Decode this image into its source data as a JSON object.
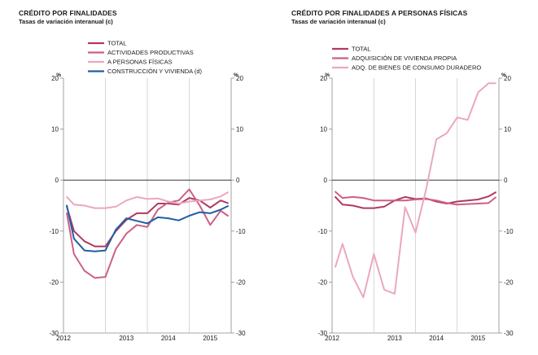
{
  "chart_data": [
    {
      "type": "line",
      "title": "CRÉDITO POR FINALIDADES",
      "subtitle": "Tasas de variación interanual (c)",
      "unit_left": "%",
      "unit_right": "%",
      "ylim": [
        -30,
        20
      ],
      "yticks": [
        20,
        10,
        0,
        -10,
        -20,
        -30
      ],
      "x_start": 2012.0,
      "x_end": 2016.0,
      "year_labels": [
        "2012",
        "2013",
        "2014",
        "2015"
      ],
      "series": [
        {
          "name": "TOTAL",
          "color": "#b03a62",
          "x": [
            2012.08,
            2012.25,
            2012.5,
            2012.75,
            2013.0,
            2013.25,
            2013.5,
            2013.75,
            2014.0,
            2014.25,
            2014.5,
            2014.75,
            2015.0,
            2015.25,
            2015.5,
            2015.75,
            2015.92
          ],
          "values": [
            -5.2,
            -10.0,
            -12.0,
            -13.0,
            -13.0,
            -10.0,
            -7.8,
            -6.5,
            -6.5,
            -4.6,
            -4.6,
            -4.8,
            -3.5,
            -4.0,
            -5.4,
            -4.0,
            -4.5
          ]
        },
        {
          "name": "ACTIVIDADES PRODUCTIVAS",
          "color": "#cc5f86",
          "x": [
            2012.08,
            2012.25,
            2012.5,
            2012.75,
            2013.0,
            2013.25,
            2013.5,
            2013.75,
            2014.0,
            2014.25,
            2014.5,
            2014.75,
            2015.0,
            2015.25,
            2015.5,
            2015.75,
            2015.92
          ],
          "values": [
            -6.5,
            -14.5,
            -17.8,
            -19.2,
            -19.0,
            -13.5,
            -10.5,
            -8.8,
            -9.2,
            -5.8,
            -4.4,
            -4.0,
            -1.8,
            -5.0,
            -8.8,
            -6.0,
            -7.0
          ]
        },
        {
          "name": "A PERSONAS FÍSICAS",
          "color": "#eba7bf",
          "x": [
            2012.08,
            2012.25,
            2012.5,
            2012.75,
            2013.0,
            2013.25,
            2013.5,
            2013.75,
            2014.0,
            2014.25,
            2014.5,
            2014.75,
            2015.0,
            2015.25,
            2015.5,
            2015.75,
            2015.92
          ],
          "values": [
            -3.3,
            -4.8,
            -5.0,
            -5.5,
            -5.5,
            -5.2,
            -4.0,
            -3.3,
            -3.7,
            -3.6,
            -4.2,
            -4.6,
            -4.2,
            -4.0,
            -3.8,
            -3.2,
            -2.4
          ]
        },
        {
          "name": "CONSTRUCCIÓN Y VIVIENDA (d)",
          "color": "#1f5fa3",
          "x": [
            2012.08,
            2012.25,
            2012.5,
            2012.75,
            2013.0,
            2013.25,
            2013.5,
            2013.75,
            2014.0,
            2014.25,
            2014.5,
            2014.75,
            2015.0,
            2015.25,
            2015.5,
            2015.75,
            2015.92
          ],
          "values": [
            -5.0,
            -11.5,
            -13.8,
            -14.0,
            -13.8,
            -9.7,
            -7.5,
            -8.0,
            -8.5,
            -7.3,
            -7.5,
            -7.9,
            -7.0,
            -6.3,
            -6.5,
            -5.8,
            -5.1
          ]
        }
      ]
    },
    {
      "type": "line",
      "title": "CRÉDITO POR FINALIDADES A PERSONAS FÍSICAS",
      "subtitle": "Tasas de variación interanual (c)",
      "unit_left": "%",
      "unit_right": "%",
      "ylim": [
        -30,
        20
      ],
      "yticks": [
        20,
        10,
        0,
        -10,
        -20,
        -30
      ],
      "x_start": 2012.0,
      "x_end": 2016.0,
      "year_labels": [
        "2012",
        "2013",
        "2014",
        "2015"
      ],
      "series": [
        {
          "name": "TOTAL",
          "color": "#b03a62",
          "x": [
            2012.08,
            2012.25,
            2012.5,
            2012.75,
            2013.0,
            2013.25,
            2013.5,
            2013.75,
            2014.0,
            2014.25,
            2014.5,
            2014.75,
            2015.0,
            2015.25,
            2015.5,
            2015.75,
            2015.92
          ],
          "values": [
            -3.3,
            -4.8,
            -5.0,
            -5.5,
            -5.5,
            -5.2,
            -4.0,
            -3.3,
            -3.7,
            -3.6,
            -4.2,
            -4.6,
            -4.2,
            -4.0,
            -3.8,
            -3.2,
            -2.4
          ]
        },
        {
          "name": "ADQUISICIÓN DE VIVIENDA PROPIA",
          "color": "#cc5f86",
          "x": [
            2012.08,
            2012.25,
            2012.5,
            2012.75,
            2013.0,
            2013.25,
            2013.5,
            2013.75,
            2014.0,
            2014.25,
            2014.5,
            2014.75,
            2015.0,
            2015.25,
            2015.5,
            2015.75,
            2015.92
          ],
          "values": [
            -2.3,
            -3.5,
            -3.3,
            -3.5,
            -4.0,
            -4.0,
            -4.0,
            -4.0,
            -3.8,
            -3.7,
            -4.0,
            -4.5,
            -4.8,
            -4.7,
            -4.6,
            -4.5,
            -3.4
          ]
        },
        {
          "name": "ADQ. DE BIENES DE CONSUMO DURADERO",
          "color": "#eba7bf",
          "x": [
            2012.08,
            2012.25,
            2012.5,
            2012.75,
            2013.0,
            2013.25,
            2013.5,
            2013.75,
            2014.0,
            2014.25,
            2014.5,
            2014.75,
            2015.0,
            2015.25,
            2015.5,
            2015.75,
            2015.92
          ],
          "values": [
            -17.0,
            -12.5,
            -19.0,
            -23.0,
            -14.5,
            -21.5,
            -22.3,
            -5.3,
            -10.3,
            -2.0,
            8.0,
            9.2,
            12.3,
            11.8,
            17.2,
            19.0,
            19.0
          ]
        }
      ]
    }
  ]
}
